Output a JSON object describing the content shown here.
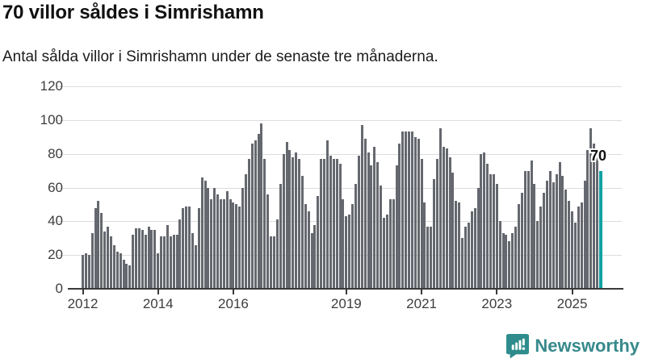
{
  "header": {
    "title": "70 villor såldes i Simrishamn",
    "subtitle": "Antal sålda villor i Simrishamn under de senaste tre månaderna."
  },
  "chart_data": {
    "type": "bar",
    "title": "70 villor såldes i Simrishamn",
    "subtitle": "Antal sålda villor i Simrishamn under de senaste tre månaderna.",
    "xlabel": "",
    "ylabel": "",
    "ylim": [
      0,
      120
    ],
    "yticks": [
      0,
      20,
      40,
      60,
      80,
      100,
      120
    ],
    "grid": true,
    "legend": false,
    "x_unit": "month",
    "xtick_labels": [
      "2012",
      "2014",
      "2016",
      "2019",
      "2021",
      "2023",
      "2025"
    ],
    "xtick_month_indices": [
      0,
      24,
      48,
      84,
      108,
      132,
      156
    ],
    "values": [
      20,
      21,
      20,
      33,
      48,
      52,
      45,
      34,
      37,
      31,
      26,
      22,
      21,
      17,
      15,
      14,
      32,
      36,
      36,
      35,
      32,
      37,
      35,
      35,
      21,
      31,
      31,
      38,
      31,
      32,
      32,
      41,
      48,
      49,
      49,
      33,
      26,
      48,
      66,
      64,
      60,
      53,
      60,
      56,
      53,
      53,
      58,
      53,
      51,
      50,
      49,
      60,
      68,
      77,
      86,
      88,
      92,
      98,
      77,
      56,
      31,
      31,
      41,
      62,
      80,
      87,
      82,
      78,
      81,
      77,
      67,
      50,
      46,
      33,
      38,
      55,
      77,
      77,
      88,
      79,
      77,
      77,
      74,
      53,
      43,
      44,
      50,
      62,
      79,
      97,
      89,
      81,
      73,
      84,
      75,
      61,
      42,
      44,
      53,
      53,
      73,
      86,
      93,
      93,
      93,
      93,
      90,
      89,
      77,
      51,
      37,
      37,
      65,
      77,
      95,
      84,
      83,
      78,
      69,
      52,
      51,
      30,
      37,
      39,
      46,
      48,
      60,
      80,
      81,
      74,
      68,
      68,
      62,
      40,
      33,
      32,
      28,
      33,
      37,
      50,
      57,
      70,
      70,
      76,
      62,
      40,
      49,
      57,
      64,
      70,
      63,
      68,
      75,
      67,
      59,
      52,
      46,
      39,
      49,
      51,
      64,
      82,
      95,
      86,
      78,
      70
    ],
    "highlight": {
      "index": 165,
      "value": 70,
      "label": "70"
    },
    "bar_color": "#65686e",
    "highlight_color": "#10a2a4"
  },
  "footer": {
    "brand": "Newsworthy",
    "logo_icon": "bar-chart-speech-bubble-icon",
    "brand_color": "#37898c",
    "logo_color": "#2e8c8c"
  }
}
